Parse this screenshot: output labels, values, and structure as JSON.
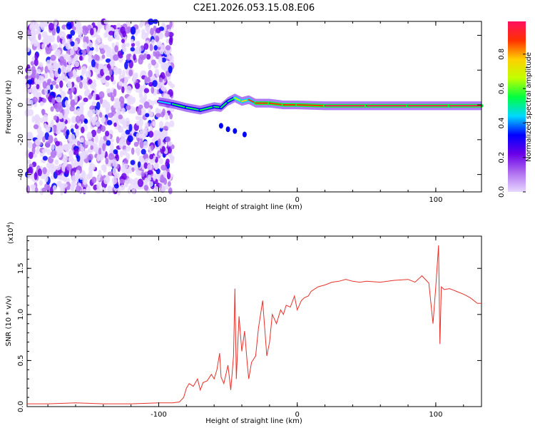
{
  "title": "C2E1.2026.053.15.08.E06",
  "chart_data": [
    {
      "type": "heatmap",
      "title": "",
      "xlabel": "Height of straight line (km)",
      "ylabel": "Frequency (Hz)",
      "xlim": [
        -195,
        133
      ],
      "ylim": [
        -50,
        48
      ],
      "x_ticks": [
        -100,
        0,
        100
      ],
      "x_tick_labels": [
        "-100",
        "0",
        "100"
      ],
      "y_ticks": [
        -40,
        -20,
        0,
        20,
        40
      ],
      "y_tick_labels": [
        "-40",
        "-20",
        "0",
        "20",
        "40"
      ],
      "colorbar": {
        "label": "Normalized spectral amplitude",
        "range": [
          0,
          0.99
        ],
        "ticks": [
          0.0,
          0.2,
          0.4,
          0.6,
          0.8
        ],
        "tick_labels": [
          "0.0",
          "0.2",
          "0.4",
          "0.6",
          "0.8"
        ],
        "colors": [
          "#e8d8ff",
          "#b070f0",
          "#6a00e8",
          "#0000ff",
          "#00d8ff",
          "#00ff40",
          "#c0ff00",
          "#ffd000",
          "#ff3000",
          "#ff1060"
        ]
      },
      "noise_region_km": [
        -195,
        -90
      ],
      "signal_ridge": [
        {
          "x": -100,
          "f": 2,
          "amp": 0.35
        },
        {
          "x": -90,
          "f": 0.5,
          "amp": 0.45
        },
        {
          "x": -80,
          "f": -1.5,
          "amp": 0.6
        },
        {
          "x": -70,
          "f": -3,
          "amp": 0.55
        },
        {
          "x": -60,
          "f": -1,
          "amp": 0.6
        },
        {
          "x": -55,
          "f": -1.5,
          "amp": 0.6
        },
        {
          "x": -50,
          "f": 2,
          "amp": 0.5
        },
        {
          "x": -45,
          "f": 4,
          "amp": 0.65
        },
        {
          "x": -40,
          "f": 2,
          "amp": 0.7
        },
        {
          "x": -35,
          "f": 3,
          "amp": 0.8
        },
        {
          "x": -30,
          "f": 1,
          "amp": 0.85
        },
        {
          "x": -20,
          "f": 1,
          "amp": 0.85
        },
        {
          "x": -10,
          "f": 0,
          "amp": 0.88
        },
        {
          "x": 0,
          "f": 0,
          "amp": 0.9
        },
        {
          "x": 20,
          "f": -0.5,
          "amp": 0.92
        },
        {
          "x": 50,
          "f": -0.5,
          "amp": 0.95
        },
        {
          "x": 80,
          "f": -0.5,
          "amp": 0.97
        },
        {
          "x": 110,
          "f": -0.5,
          "amp": 0.95
        },
        {
          "x": 133,
          "f": -0.5,
          "amp": 0.92
        }
      ],
      "secondary_branch": [
        {
          "x": -55,
          "f": -12,
          "amp": 0.3
        },
        {
          "x": -50,
          "f": -14,
          "amp": 0.3
        },
        {
          "x": -45,
          "f": -15,
          "amp": 0.3
        },
        {
          "x": -38,
          "f": -17,
          "amp": 0.3
        }
      ]
    },
    {
      "type": "line",
      "title": "",
      "xlabel": "Height of straight line (km)",
      "ylabel": "SNR (10 * v/v)",
      "y_multiplier_label": "(x10",
      "y_multiplier_exponent": "4",
      "y_multiplier_close": ")",
      "xlim": [
        -195,
        133
      ],
      "ylim": [
        0,
        1.85
      ],
      "x_ticks": [
        -100,
        0,
        100
      ],
      "x_tick_labels": [
        "-100",
        "0",
        "100"
      ],
      "y_ticks": [
        0.0,
        0.5,
        1.0,
        1.5
      ],
      "y_tick_labels": [
        "0.0",
        "0.5",
        "1.0",
        "1.5"
      ],
      "series_color": "#e8312a",
      "series": [
        {
          "name": "SNR",
          "x": [
            -195,
            -180,
            -160,
            -140,
            -120,
            -100,
            -90,
            -85,
            -82,
            -80,
            -78,
            -75,
            -72,
            -70,
            -68,
            -65,
            -62,
            -60,
            -58,
            -56,
            -55,
            -53,
            -50,
            -48,
            -46,
            -45,
            -44,
            -42,
            -40,
            -38,
            -36,
            -35,
            -33,
            -30,
            -28,
            -25,
            -22,
            -20,
            -18,
            -15,
            -12,
            -10,
            -8,
            -5,
            -2,
            0,
            3,
            5,
            8,
            10,
            15,
            20,
            25,
            30,
            35,
            40,
            45,
            50,
            60,
            70,
            80,
            85,
            90,
            95,
            98,
            100,
            102,
            103,
            104,
            106,
            110,
            115,
            120,
            125,
            130,
            133
          ],
          "y": [
            0.03,
            0.03,
            0.04,
            0.03,
            0.03,
            0.04,
            0.04,
            0.05,
            0.1,
            0.2,
            0.25,
            0.22,
            0.3,
            0.18,
            0.26,
            0.28,
            0.35,
            0.3,
            0.4,
            0.58,
            0.32,
            0.25,
            0.45,
            0.18,
            0.55,
            1.28,
            0.3,
            0.98,
            0.6,
            0.82,
            0.45,
            0.3,
            0.48,
            0.55,
            0.85,
            1.15,
            0.55,
            0.7,
            1.0,
            0.9,
            1.05,
            1.0,
            1.1,
            1.08,
            1.2,
            1.05,
            1.15,
            1.18,
            1.2,
            1.25,
            1.3,
            1.32,
            1.35,
            1.36,
            1.38,
            1.36,
            1.35,
            1.36,
            1.35,
            1.37,
            1.38,
            1.35,
            1.42,
            1.34,
            0.9,
            1.3,
            1.75,
            0.68,
            1.3,
            1.27,
            1.28,
            1.25,
            1.22,
            1.18,
            1.12,
            1.12
          ]
        }
      ]
    }
  ]
}
